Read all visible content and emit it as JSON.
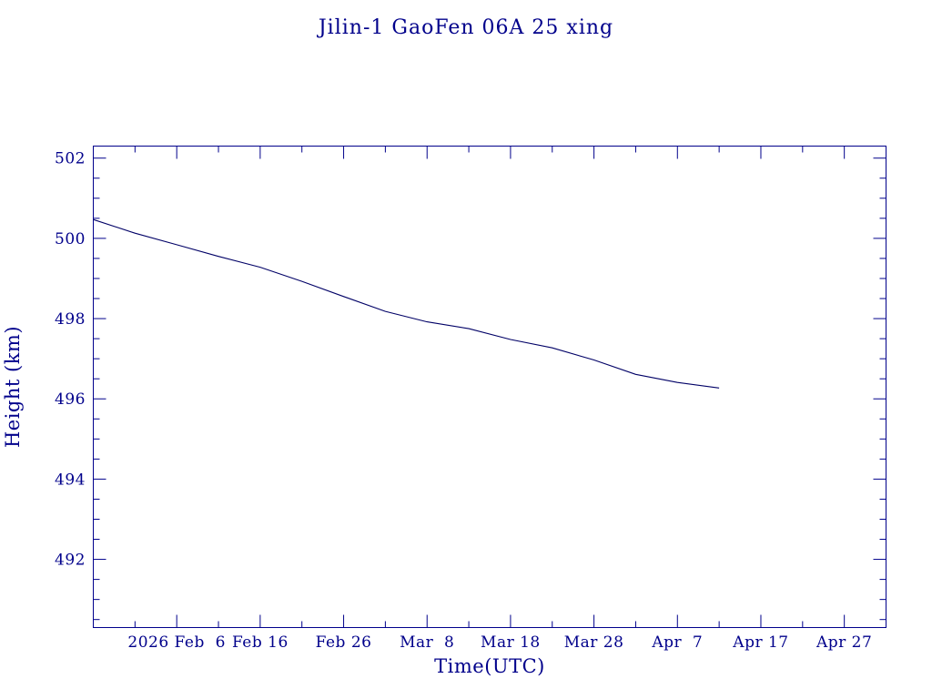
{
  "chart_data": {
    "type": "line",
    "title": "Jilin-1 GaoFen 06A 25 xing",
    "xlabel": "Time(UTC)",
    "ylabel": "Height (km)",
    "ylim": [
      490.3,
      502.3
    ],
    "xlim": [
      "2026-01-27",
      "2026-05-02"
    ],
    "y_major_ticks": [
      492,
      494,
      496,
      498,
      500,
      502
    ],
    "y_tick_labels": [
      "492",
      "494",
      "496",
      "498",
      "500",
      "502"
    ],
    "y_minor_step": 0.5,
    "x_major_ticks": [
      "2026-02-06",
      "2026-02-16",
      "2026-02-26",
      "2026-03-08",
      "2026-03-18",
      "2026-03-28",
      "2026-04-07",
      "2026-04-17",
      "2026-04-27"
    ],
    "x_tick_labels": [
      "2026 Feb  6",
      "Feb 16",
      "Feb 26",
      "Mar  8",
      "Mar 18",
      "Mar 28",
      "Apr  7",
      "Apr 17",
      "Apr 27"
    ],
    "x_minor_step_days": 5,
    "grid": false,
    "colors": {
      "axis": "#00008b",
      "line": "#000066"
    },
    "series": [
      {
        "x": [
          "2026-01-27",
          "2026-02-01",
          "2026-02-06",
          "2026-02-11",
          "2026-02-16",
          "2026-02-21",
          "2026-02-26",
          "2026-03-03",
          "2026-03-08",
          "2026-03-13",
          "2026-03-18",
          "2026-03-23",
          "2026-03-28",
          "2026-04-02",
          "2026-04-07",
          "2026-04-12"
        ],
        "y": [
          500.47,
          500.13,
          499.84,
          499.55,
          499.28,
          498.93,
          498.55,
          498.18,
          497.92,
          497.75,
          497.48,
          497.27,
          496.97,
          496.61,
          496.41,
          496.27
        ]
      }
    ]
  }
}
